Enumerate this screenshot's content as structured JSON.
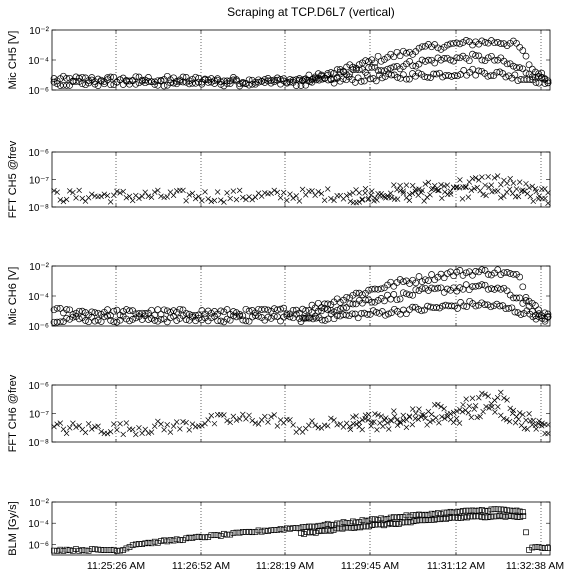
{
  "title": "Scraping at TCP.D6L7 (vertical)",
  "x_tick_labels": [
    "11:25:26 AM",
    "11:26:52 AM",
    "11:28:19 AM",
    "11:29:45 AM",
    "11:31:12 AM",
    "11:32:38 AM"
  ],
  "chart_data": [
    {
      "type": "scatter",
      "title": "Scraping at TCP.D6L7 (vertical)",
      "ylabel": "Mic CH5 [V]",
      "yscale": "log",
      "ylim": [
        1e-06,
        0.01
      ],
      "ytick_labels": [
        "10⁻⁶",
        "10⁻⁴",
        "10⁻²"
      ],
      "marker": "circle",
      "grid": "x-dotted",
      "series": [
        {
          "x_frac": [
            0.0,
            0.1,
            0.2,
            0.3,
            0.4,
            0.5,
            0.55,
            0.6,
            0.65,
            0.7,
            0.75,
            0.8,
            0.85,
            0.9,
            0.94,
            0.97,
            1.0
          ],
          "values": [
            5e-06,
            5e-06,
            5e-06,
            5e-06,
            4e-06,
            5e-06,
            1e-05,
            3e-05,
            0.0001,
            0.00025,
            0.0006,
            0.001,
            0.0015,
            0.0017,
            0.001,
            2e-05,
            5e-06
          ]
        },
        {
          "x_frac": [
            0.0,
            0.2,
            0.4,
            0.5,
            0.55,
            0.6,
            0.65,
            0.7,
            0.75,
            0.8,
            0.85,
            0.9,
            0.95,
            1.0
          ],
          "values": [
            3e-06,
            3e-06,
            3e-06,
            3e-06,
            6e-06,
            1.5e-05,
            2.5e-05,
            4e-05,
            8e-05,
            0.00012,
            0.00015,
            0.0001,
            2e-05,
            5e-06
          ]
        },
        {
          "x_frac": [
            0.5,
            0.6,
            0.7,
            0.8,
            0.85,
            0.9,
            0.95,
            1.0
          ],
          "values": [
            3e-06,
            5e-06,
            8e-06,
            1.2e-05,
            1.6e-05,
            1.2e-05,
            6e-06,
            4e-06
          ]
        }
      ]
    },
    {
      "type": "scatter",
      "ylabel": "FFT CH5 @frev",
      "yscale": "log",
      "ylim": [
        1e-08,
        1e-06
      ],
      "ytick_labels": [
        "10⁻⁸",
        "10⁻⁷",
        "10⁻⁶"
      ],
      "marker": "x",
      "grid": "x-dotted",
      "series": [
        {
          "x_frac": [
            0.0,
            0.2,
            0.4,
            0.5,
            0.6,
            0.7,
            0.75,
            0.8,
            0.85,
            0.9,
            0.95,
            1.0
          ],
          "values": [
            2.5e-08,
            2.5e-08,
            2.5e-08,
            2.7e-08,
            3e-08,
            4e-08,
            5e-08,
            6e-08,
            8e-08,
            1e-07,
            5e-08,
            2.5e-08
          ]
        },
        {
          "x_frac": [
            0.6,
            0.7,
            0.8,
            0.85,
            0.9,
            0.95,
            1.0
          ],
          "values": [
            2e-08,
            2.5e-08,
            3e-08,
            3.5e-08,
            3e-08,
            2.5e-08,
            2e-08
          ]
        }
      ]
    },
    {
      "type": "scatter",
      "ylabel": "Mic CH6 [V]",
      "yscale": "log",
      "ylim": [
        1e-06,
        0.01
      ],
      "ytick_labels": [
        "10⁻⁶",
        "10⁻⁴",
        "10⁻²"
      ],
      "marker": "circle",
      "grid": "x-dotted",
      "series": [
        {
          "x_frac": [
            0.0,
            0.1,
            0.2,
            0.3,
            0.4,
            0.5,
            0.55,
            0.6,
            0.65,
            0.7,
            0.75,
            0.8,
            0.85,
            0.9,
            0.94,
            0.97,
            1.0
          ],
          "values": [
            1e-05,
            8e-06,
            8e-06,
            8e-06,
            8e-06,
            1.2e-05,
            3e-05,
            0.0001,
            0.0003,
            0.0008,
            0.0015,
            0.003,
            0.004,
            0.004,
            0.002,
            1e-05,
            3e-06
          ]
        },
        {
          "x_frac": [
            0.0,
            0.2,
            0.4,
            0.5,
            0.55,
            0.6,
            0.65,
            0.7,
            0.75,
            0.8,
            0.85,
            0.9,
            0.95,
            1.0
          ],
          "values": [
            3e-06,
            3e-06,
            3e-06,
            4e-06,
            1e-05,
            3e-05,
            6e-05,
            0.0001,
            0.0002,
            0.0003,
            0.0004,
            0.0003,
            5e-05,
            4e-06
          ]
        },
        {
          "x_frac": [
            0.5,
            0.6,
            0.7,
            0.8,
            0.85,
            0.9,
            0.95,
            1.0
          ],
          "values": [
            3e-06,
            5e-06,
            1e-05,
            2e-05,
            3e-05,
            2e-05,
            8e-06,
            3e-06
          ]
        }
      ]
    },
    {
      "type": "scatter",
      "ylabel": "FFT CH6 @frev",
      "yscale": "log",
      "ylim": [
        1e-08,
        1e-06
      ],
      "ytick_labels": [
        "10⁻⁸",
        "10⁻⁷",
        "10⁻⁶"
      ],
      "marker": "x",
      "grid": "x-dotted",
      "series": [
        {
          "x_frac": [
            0.0,
            0.15,
            0.25,
            0.3,
            0.35,
            0.4,
            0.45,
            0.5,
            0.55,
            0.6,
            0.7,
            0.8,
            0.85,
            0.9,
            0.95,
            1.0
          ],
          "values": [
            3e-08,
            3e-08,
            3.5e-08,
            5e-08,
            6e-08,
            6.5e-08,
            6e-08,
            3e-08,
            4e-08,
            5e-08,
            8e-08,
            1.5e-07,
            3e-07,
            4e-07,
            8e-08,
            3e-08
          ]
        },
        {
          "x_frac": [
            0.6,
            0.7,
            0.8,
            0.85,
            0.9,
            0.95,
            1.0
          ],
          "values": [
            4e-08,
            5e-08,
            6e-08,
            1e-07,
            1.3e-07,
            5e-08,
            3e-08
          ]
        }
      ]
    },
    {
      "type": "scatter",
      "ylabel": "BLM [Gy/s]",
      "yscale": "log",
      "ylim": [
        1e-07,
        0.01
      ],
      "ytick_labels": [
        "10⁻⁶",
        "10⁻⁴",
        "10⁻²"
      ],
      "marker": "square",
      "grid": "x-dotted",
      "series": [
        {
          "x_frac": [
            0.0,
            0.14,
            0.16,
            0.2,
            0.3,
            0.4,
            0.5,
            0.6,
            0.7,
            0.8,
            0.85,
            0.9,
            0.93,
            0.95,
            0.96,
            0.97,
            1.0
          ],
          "values": [
            3e-07,
            3e-07,
            1e-06,
            1.5e-06,
            5e-06,
            1.5e-05,
            4e-05,
            0.00012,
            0.0004,
            0.001,
            0.0015,
            0.002,
            0.0015,
            0.001,
            3e-07,
            5e-07,
            5e-07
          ]
        },
        {
          "x_frac": [
            0.5,
            0.6,
            0.7,
            0.8,
            0.9,
            0.95
          ],
          "values": [
            1e-05,
            4e-05,
            0.0001,
            0.0003,
            0.0005,
            0.0004
          ]
        }
      ]
    }
  ]
}
